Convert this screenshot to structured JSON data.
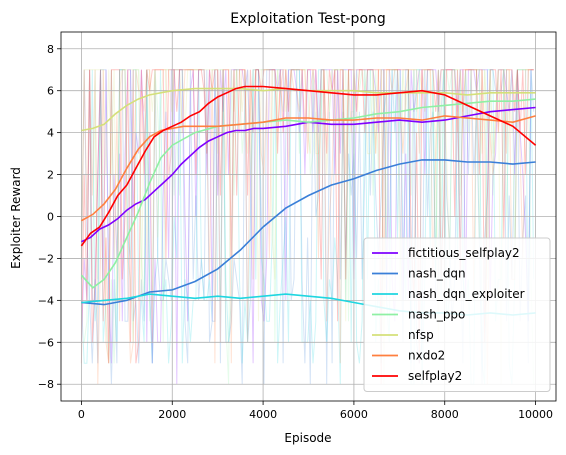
{
  "chart_data": {
    "type": "line",
    "title": "Exploitation Test-pong",
    "xlabel": "Episode",
    "ylabel": "Exploiter Reward",
    "xlim": [
      -450,
      10450
    ],
    "ylim": [
      -8.8,
      8.8
    ],
    "xticks": [
      0,
      2000,
      4000,
      6000,
      8000,
      10000
    ],
    "xtick_labels": [
      "0",
      "2000",
      "4000",
      "6000",
      "8000",
      "10000"
    ],
    "yticks": [
      -8,
      -6,
      -4,
      -2,
      0,
      2,
      4,
      6,
      8
    ],
    "ytick_labels": [
      "−8",
      "−6",
      "−4",
      "−2",
      "0",
      "2",
      "4",
      "6",
      "8"
    ],
    "grid": true,
    "legend_position": "lower-right",
    "series": [
      {
        "name": "fictitious_selfplay2",
        "color": "#7f00ff",
        "x": [
          0,
          200,
          400,
          600,
          800,
          1000,
          1200,
          1400,
          1600,
          1800,
          2000,
          2200,
          2400,
          2600,
          2800,
          3000,
          3200,
          3400,
          3600,
          3800,
          4000,
          4500,
          5000,
          5500,
          6000,
          6500,
          7000,
          7500,
          8000,
          8500,
          9000,
          9500,
          10000
        ],
        "values": [
          -1.2,
          -1.0,
          -0.6,
          -0.4,
          -0.1,
          0.3,
          0.6,
          0.8,
          1.2,
          1.6,
          2.0,
          2.5,
          2.9,
          3.3,
          3.6,
          3.8,
          4.0,
          4.1,
          4.1,
          4.2,
          4.2,
          4.3,
          4.5,
          4.4,
          4.4,
          4.5,
          4.6,
          4.5,
          4.6,
          4.8,
          5.0,
          5.1,
          5.2
        ]
      },
      {
        "name": "nash_dqn",
        "color": "#3a7fd8",
        "x": [
          0,
          500,
          1000,
          1500,
          2000,
          2500,
          3000,
          3500,
          4000,
          4500,
          5000,
          5500,
          6000,
          6500,
          7000,
          7500,
          8000,
          8500,
          9000,
          9500,
          10000
        ],
        "values": [
          -4.1,
          -4.2,
          -4.0,
          -3.6,
          -3.5,
          -3.1,
          -2.5,
          -1.6,
          -0.5,
          0.4,
          1.0,
          1.5,
          1.8,
          2.2,
          2.5,
          2.7,
          2.7,
          2.6,
          2.6,
          2.5,
          2.6
        ]
      },
      {
        "name": "nash_dqn_exploiter",
        "color": "#1fd6e0",
        "x": [
          0,
          500,
          1000,
          1500,
          2000,
          2500,
          3000,
          3500,
          4000,
          4500,
          5000,
          5500,
          6000,
          6500,
          7000,
          7500,
          8000,
          8500,
          9000,
          9500,
          10000
        ],
        "values": [
          -4.1,
          -4.0,
          -3.9,
          -3.7,
          -3.8,
          -3.9,
          -3.8,
          -3.9,
          -3.8,
          -3.7,
          -3.8,
          -3.9,
          -4.1,
          -4.3,
          -4.5,
          -4.6,
          -4.6,
          -4.7,
          -4.6,
          -4.7,
          -4.6
        ]
      },
      {
        "name": "nash_ppo",
        "color": "#8ff0a4",
        "x": [
          0,
          250,
          500,
          750,
          1000,
          1250,
          1500,
          1750,
          2000,
          2500,
          3000,
          3500,
          4000,
          4500,
          5000,
          5500,
          6000,
          6500,
          7000,
          7500,
          8000,
          8500,
          9000,
          9500,
          10000
        ],
        "values": [
          -2.8,
          -3.4,
          -3.0,
          -2.2,
          -1.0,
          0.2,
          1.6,
          2.8,
          3.4,
          4.0,
          4.3,
          4.4,
          4.5,
          4.6,
          4.5,
          4.6,
          4.7,
          4.9,
          5.0,
          5.2,
          5.3,
          5.4,
          5.5,
          5.5,
          5.6
        ]
      },
      {
        "name": "nfsp",
        "color": "#d4e07a",
        "x": [
          0,
          250,
          500,
          750,
          1000,
          1250,
          1500,
          2000,
          2500,
          3000,
          3500,
          4000,
          4500,
          5000,
          5500,
          6000,
          6500,
          7000,
          7500,
          8000,
          8500,
          9000,
          9500,
          10000
        ],
        "values": [
          4.1,
          4.2,
          4.4,
          4.9,
          5.3,
          5.6,
          5.8,
          6.0,
          6.1,
          6.1,
          6.1,
          6.0,
          6.1,
          6.0,
          6.0,
          6.0,
          5.9,
          5.9,
          5.9,
          5.9,
          5.8,
          5.9,
          5.9,
          5.9
        ]
      },
      {
        "name": "nxdo2",
        "color": "#ff7f3f",
        "x": [
          0,
          250,
          500,
          750,
          1000,
          1250,
          1500,
          1750,
          2000,
          2250,
          2500,
          3000,
          3500,
          4000,
          4500,
          5000,
          5500,
          6000,
          6500,
          7000,
          7500,
          8000,
          8500,
          9000,
          9500,
          10000
        ],
        "values": [
          -0.2,
          0.1,
          0.6,
          1.3,
          2.3,
          3.2,
          3.8,
          4.1,
          4.2,
          4.3,
          4.3,
          4.3,
          4.4,
          4.5,
          4.7,
          4.7,
          4.6,
          4.6,
          4.7,
          4.7,
          4.6,
          4.8,
          4.7,
          4.6,
          4.5,
          4.8
        ]
      },
      {
        "name": "selfplay2",
        "color": "#ff0000",
        "x": [
          0,
          200,
          400,
          600,
          800,
          1000,
          1200,
          1400,
          1600,
          1800,
          2000,
          2200,
          2400,
          2600,
          2800,
          3000,
          3200,
          3400,
          3600,
          3800,
          4000,
          4500,
          5000,
          5500,
          6000,
          6500,
          7000,
          7500,
          8000,
          8500,
          9000,
          9500,
          10000
        ],
        "values": [
          -1.4,
          -0.8,
          -0.5,
          0.2,
          1.0,
          1.5,
          2.3,
          3.1,
          3.8,
          4.1,
          4.3,
          4.5,
          4.8,
          5.0,
          5.4,
          5.7,
          5.9,
          6.1,
          6.2,
          6.2,
          6.2,
          6.1,
          6.0,
          5.9,
          5.8,
          5.8,
          5.9,
          6.0,
          5.8,
          5.3,
          4.8,
          4.3,
          3.4
        ]
      }
    ]
  }
}
